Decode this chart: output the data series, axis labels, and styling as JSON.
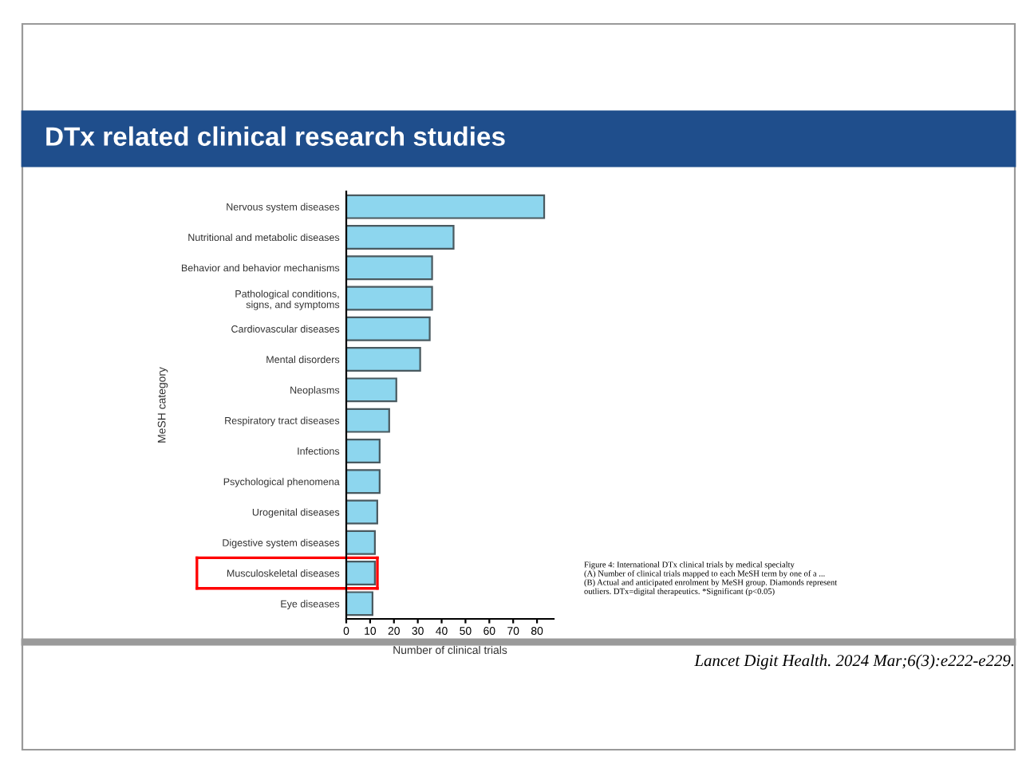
{
  "chart_data": {
    "type": "bar",
    "orientation": "horizontal",
    "title": "DTx related clinical research studies",
    "categories": [
      "Nervous system diseases",
      "Nutritional and metabolic diseases",
      "Behavior and behavior mechanisms",
      "Pathological conditions,\nsigns, and symptoms",
      "Cardiovascular diseases",
      "Mental disorders",
      "Neoplasms",
      "Respiratory tract diseases",
      "Infections",
      "Psychological phenomena",
      "Urogenital diseases",
      "Digestive system diseases",
      "Musculoskeletal diseases",
      "Eye diseases"
    ],
    "values": [
      83,
      45,
      36,
      36,
      35,
      31,
      21,
      18,
      14,
      14,
      13,
      12,
      12,
      11
    ],
    "color": "#8dd6ee",
    "xlim": [
      0,
      87
    ],
    "xticks": [
      0,
      10,
      20,
      30,
      40,
      50,
      60,
      70,
      80
    ],
    "xlabel": "Number of clinical trials",
    "ylabel": "MeSH category",
    "grid": false,
    "annotations": [
      "Figure 4: International DTx clinical trials by medical specialty\n(A) Number of clinical trials mapped to each MeSH term by one of a ...\n(B) Actual and anticipated enrolment by MeSH group. Diamonds represent\noutliers. DTx=digital therapeutics. *Significant (p<0.05)",
      "Lancet Digit Health. 2024 Mar;6(3):e222-e229."
    ]
  }
}
